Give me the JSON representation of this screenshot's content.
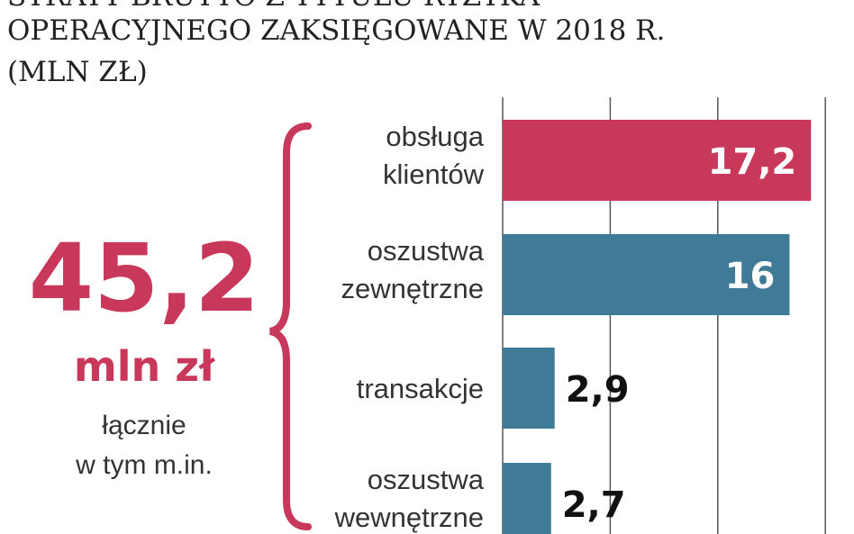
{
  "chart_data": {
    "type": "bar",
    "orientation": "horizontal",
    "title": [
      "STRATY BRUTTO Z TYTUŁU RYZYKA",
      "OPERACYJNEGO ZAKSIĘGOWANE W  2018 R.",
      "(MLN ZŁ)"
    ],
    "categories": [
      "obsługa klientów",
      "oszustwa zewnętrzne",
      "transakcje",
      "oszustwa wewnętrzne"
    ],
    "values": [
      17.2,
      16,
      2.9,
      2.7
    ],
    "value_labels": [
      "17,2",
      "16",
      "2,9",
      "2,7"
    ],
    "colors": [
      "#c8385a",
      "#3f7a96",
      "#3f7a96",
      "#3f7a96"
    ],
    "xlim": [
      0,
      19.6
    ],
    "xticks": [
      0,
      6,
      12,
      18
    ],
    "grid": true,
    "annotations": [
      "45,2",
      "mln zł",
      "łącznie",
      "w tym m.in."
    ]
  }
}
